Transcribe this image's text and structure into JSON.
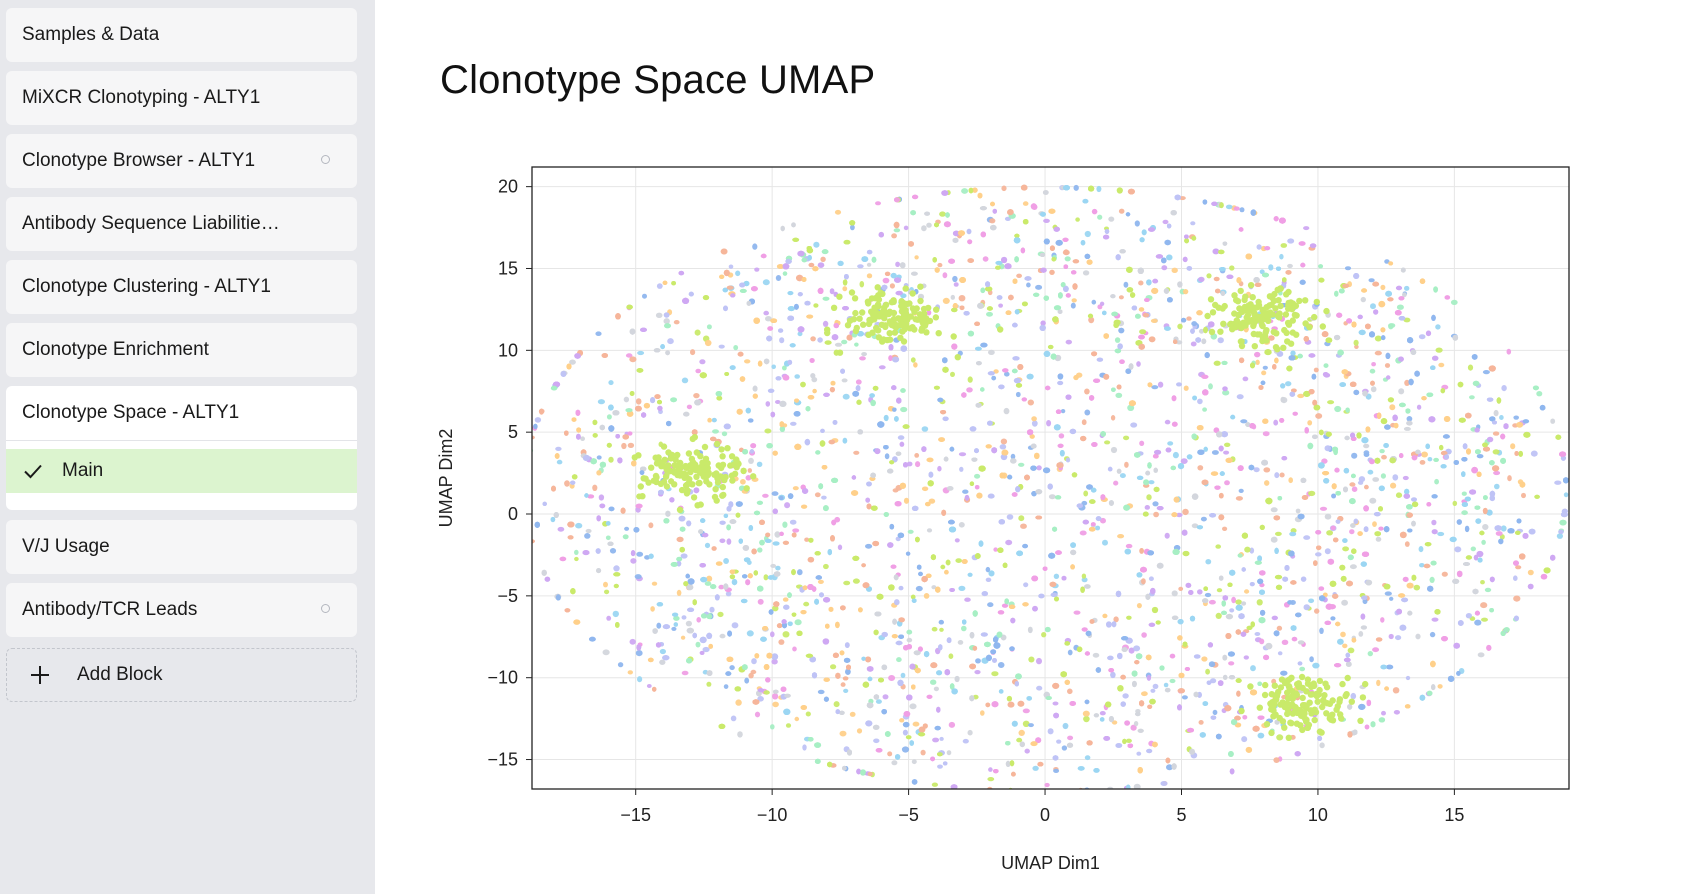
{
  "sidebar": {
    "blocks": [
      {
        "label": "Samples & Data",
        "status": "none"
      },
      {
        "label": "MiXCR Clonotyping - ALTY1",
        "status": "none"
      },
      {
        "label": "Clonotype Browser - ALTY1",
        "status": "pending"
      },
      {
        "label": "Antibody Sequence Liabilitie…",
        "status": "none"
      },
      {
        "label": "Clonotype Clustering - ALTY1",
        "status": "none"
      },
      {
        "label": "Clonotype Enrichment",
        "status": "none"
      }
    ],
    "active_block": {
      "label": "Clonotype Space - ALTY1",
      "sub_items": [
        {
          "label": "Main",
          "selected": true,
          "icon": "check-icon"
        }
      ]
    },
    "after_blocks": [
      {
        "label": "V/J Usage",
        "status": "none"
      },
      {
        "label": "Antibody/TCR Leads",
        "status": "pending"
      }
    ],
    "add_block_label": "Add Block",
    "add_block_icon": "plus-icon"
  },
  "main": {
    "title": "Clonotype Space UMAP"
  },
  "chart_data": {
    "type": "scatter",
    "title": "",
    "xlabel": "UMAP Dim1",
    "ylabel": "UMAP Dim2",
    "xlim": [
      -18.8,
      19.2
    ],
    "ylim": [
      -16.8,
      21.2
    ],
    "xticks": [
      -15,
      -10,
      -5,
      0,
      5,
      10,
      15
    ],
    "yticks": [
      -15,
      -10,
      -5,
      0,
      5,
      10,
      15,
      20
    ],
    "xtick_labels": [
      "−15",
      "−10",
      "−5",
      "0",
      "5",
      "10",
      "15"
    ],
    "ytick_labels": [
      "−15",
      "−10",
      "−5",
      "0",
      "5",
      "10",
      "15",
      "20"
    ],
    "grid": true,
    "legend": false,
    "distribution": {
      "shape": "elliptical cloud of several thousand points",
      "center": [
        0,
        0
      ],
      "x_extent": [
        -18.5,
        19
      ],
      "y_extent": [
        -16.5,
        20.5
      ],
      "dense_clusters": [
        {
          "x": -5.5,
          "y": 12,
          "color": "#c9ea6a"
        },
        {
          "x": -13,
          "y": 2.5,
          "color": "#c9ea6a"
        },
        {
          "x": 8,
          "y": 12,
          "color": "#c9ea6a"
        },
        {
          "x": 9.5,
          "y": -11.5,
          "color": "#c9ea6a"
        }
      ]
    },
    "series_colors": [
      "#c9ea6a",
      "#9bd6f2",
      "#f6b59a",
      "#bfc3f5",
      "#ef9fe5",
      "#a7eec4",
      "#ffd08a",
      "#d3d6dc",
      "#8fb6ee",
      "#cfa8f2"
    ]
  }
}
